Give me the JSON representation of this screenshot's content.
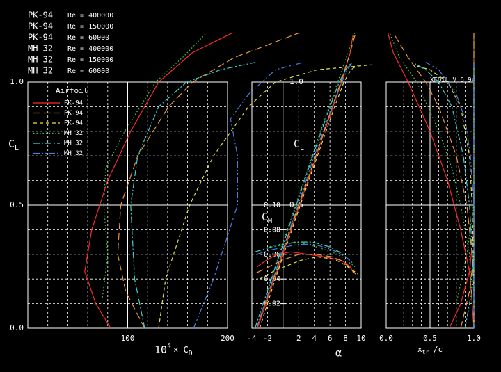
{
  "chart_data": {
    "type": "line",
    "version": "XFOIL V 6.94",
    "legend_title": "Airfoil",
    "ylabel": "C",
    "ylabel_sub": "L",
    "ylim": [
      0,
      1
    ],
    "yticks": [
      {
        "value": 0,
        "label": "0.0"
      },
      {
        "value": 0.5,
        "label": "0.5"
      },
      {
        "value": 1,
        "label": "1.0"
      }
    ],
    "yminorticks": [
      0.1,
      0.2,
      0.3,
      0.4,
      0.6,
      0.7,
      0.8,
      0.9
    ],
    "y2label": "C",
    "y2label_sub": "M",
    "y2lim": [
      0,
      -0.2
    ],
    "y2ticks": [
      -0.02,
      -0.04,
      -0.06,
      -0.08,
      {
        "value": -0.1,
        "label": "-0.10"
      }
    ],
    "cd_label": {
      "base": "10",
      "exp": "4",
      "times": "× C",
      "sub": "D"
    },
    "alpha_label": "α",
    "xtr_label": {
      "base": "x",
      "sub": "tr",
      "rest": " /c"
    },
    "panels": [
      {
        "xlim": [
          0,
          200
        ],
        "xticks": [
          100,
          200
        ],
        "xminorticks": [
          20,
          40,
          60,
          80,
          120,
          140,
          160,
          180
        ],
        "solid_xticks": true
      },
      {
        "xlim": [
          -4,
          10
        ],
        "xticks": [
          -4,
          -2,
          2,
          4,
          6,
          8,
          10
        ],
        "xminorticks": [
          0
        ],
        "solid_xticks": false
      },
      {
        "xlim": [
          0,
          1
        ],
        "xticks": [
          {
            "value": 0,
            "label": "0.0"
          },
          {
            "value": 0.5,
            "label": "0.5"
          },
          {
            "value": 1,
            "label": "1.0"
          }
        ],
        "xminorticks": [
          0.1,
          0.2,
          0.3,
          0.4,
          0.6,
          0.7,
          0.8,
          0.9
        ],
        "solid_xticks": true
      }
    ],
    "series": [
      {
        "name": "PK-94",
        "re": "Re = 400000",
        "color": "#ff2a2a",
        "line_style": "solid",
        "cl": [
          0,
          0.1,
          0.23,
          0.4,
          0.6,
          0.8,
          1.0,
          1.12,
          1.2
        ],
        "cd": [
          83,
          68,
          57,
          64,
          80,
          103,
          131,
          165,
          205
        ],
        "alpha": [
          -3.3,
          -2.2,
          -0.8,
          1.0,
          3.2,
          5.3,
          7.5,
          8.6,
          9.0
        ],
        "cm": [
          -0.05,
          -0.055,
          -0.06,
          -0.062,
          -0.06,
          -0.058,
          -0.055,
          -0.05,
          -0.045
        ],
        "xtr_top": [
          1.0,
          0.98,
          0.95,
          0.85,
          0.7,
          0.5,
          0.25,
          0.08,
          0.02
        ],
        "xtr_bot": [
          0.72,
          0.85,
          0.95,
          1.0,
          1.0,
          1.0,
          1.0,
          1.0,
          1.0
        ]
      },
      {
        "name": "PK-94",
        "re": "Re = 150000",
        "color": "#f0983a",
        "line_style": "dashed",
        "cl": [
          0,
          0.15,
          0.3,
          0.5,
          0.7,
          0.9,
          1.0,
          1.1,
          1.2
        ],
        "cd": [
          117,
          98,
          90,
          93,
          110,
          141,
          165,
          207,
          272
        ],
        "alpha": [
          -3.4,
          -1.8,
          -0.2,
          2.0,
          4.2,
          6.3,
          7.4,
          8.4,
          9.3
        ],
        "cm": [
          -0.045,
          -0.05,
          -0.055,
          -0.06,
          -0.06,
          -0.058,
          -0.055,
          -0.05,
          -0.044
        ],
        "xtr_top": [
          1.0,
          1.0,
          0.98,
          0.92,
          0.8,
          0.6,
          0.45,
          0.25,
          0.08
        ],
        "xtr_bot": [
          0.85,
          0.95,
          1.0,
          1.0,
          1.0,
          1.0,
          1.0,
          1.0,
          1.0
        ]
      },
      {
        "name": "PK-94",
        "re": "Re = 60000",
        "color": "#e6e33c",
        "line_style": "short-dashed",
        "cl": [
          0,
          0.2,
          0.5,
          0.7,
          0.9,
          1.0,
          1.05,
          1.07
        ],
        "cd": [
          131,
          138,
          162,
          186,
          221,
          248,
          290,
          345
        ],
        "alpha": [
          -3.0,
          -1.0,
          2.2,
          4.4,
          6.6,
          7.8,
          8.7,
          9.6
        ],
        "cm": [
          -0.04,
          -0.047,
          -0.055,
          -0.058,
          -0.056,
          -0.052,
          -0.048,
          -0.044
        ],
        "xtr_top": [
          1.0,
          1.0,
          0.98,
          0.95,
          0.85,
          0.7,
          0.5,
          0.3
        ],
        "xtr_bot": [
          1.0,
          1.0,
          1.0,
          1.0,
          1.0,
          1.0,
          1.0,
          1.0
        ]
      },
      {
        "name": "MH 32",
        "re": "Re = 400000",
        "color": "#3cd23c",
        "line_style": "dotted",
        "cl": [
          0.1,
          0.3,
          0.5,
          0.65,
          0.8,
          1.0,
          1.1,
          1.2
        ],
        "cd": [
          74,
          80,
          76,
          78,
          97,
          128,
          155,
          179
        ],
        "alpha": [
          -2.5,
          -0.5,
          1.6,
          3.2,
          4.8,
          7.0,
          8.1,
          9.2
        ],
        "cm": [
          -0.065,
          -0.068,
          -0.07,
          -0.068,
          -0.065,
          -0.06,
          -0.055,
          -0.05
        ],
        "xtr_top": [
          0.98,
          0.95,
          0.85,
          0.75,
          0.6,
          0.35,
          0.15,
          0.04
        ],
        "xtr_bot": [
          0.8,
          0.92,
          1.0,
          1.0,
          1.0,
          1.0,
          1.0,
          1.0
        ]
      },
      {
        "name": "MH 32",
        "re": "Re = 150000",
        "color": "#3cd2d2",
        "line_style": "dash-dot",
        "cl": [
          0,
          0.2,
          0.5,
          0.7,
          0.9,
          1.0,
          1.05,
          1.08
        ],
        "cd": [
          117,
          107,
          103,
          110,
          131,
          159,
          193,
          228
        ],
        "alpha": [
          -3.6,
          -1.5,
          1.7,
          3.8,
          6.0,
          7.2,
          8.0,
          8.8
        ],
        "cm": [
          -0.062,
          -0.066,
          -0.07,
          -0.07,
          -0.066,
          -0.062,
          -0.058,
          -0.054
        ],
        "xtr_top": [
          1.0,
          1.0,
          0.95,
          0.88,
          0.75,
          0.6,
          0.45,
          0.3
        ],
        "xtr_bot": [
          0.9,
          1.0,
          1.0,
          1.0,
          1.0,
          1.0,
          1.0,
          1.0
        ]
      },
      {
        "name": "MH 32",
        "re": "Re = 60000",
        "color": "#4a7ee0",
        "line_style": "dash-dot-dot",
        "cl": [
          0,
          0.2,
          0.5,
          0.7,
          0.85,
          0.95,
          1.05,
          1.08
        ],
        "cd": [
          166,
          186,
          210,
          210,
          203,
          221,
          248,
          276
        ],
        "alpha": [
          -3.4,
          -1.3,
          1.9,
          4.0,
          5.7,
          6.9,
          8.2,
          8.9
        ],
        "cm": [
          -0.06,
          -0.064,
          -0.068,
          -0.068,
          -0.065,
          -0.062,
          -0.057,
          -0.053
        ],
        "xtr_top": [
          1.0,
          1.0,
          1.0,
          0.96,
          0.9,
          0.8,
          0.6,
          0.45
        ],
        "xtr_bot": [
          1.0,
          1.0,
          1.0,
          1.0,
          1.0,
          1.0,
          1.0,
          1.0
        ]
      }
    ]
  }
}
